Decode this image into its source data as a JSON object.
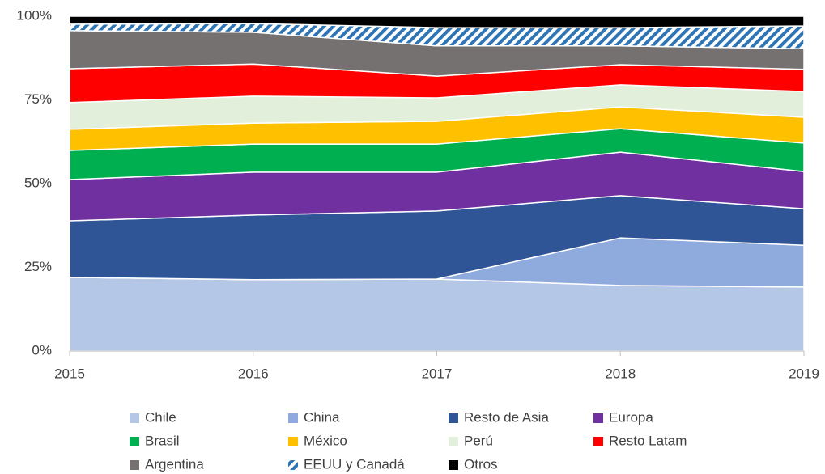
{
  "chart_data": {
    "type": "stacked-area",
    "x": [
      2015,
      2016,
      2017,
      2018,
      2019
    ],
    "xlim": [
      2015,
      2019
    ],
    "xticks": [
      2015,
      2016,
      2017,
      2018,
      2019
    ],
    "ylim": [
      0,
      100
    ],
    "yticks": [
      {
        "value": 0,
        "label": "0%"
      },
      {
        "value": 25,
        "label": "25%"
      },
      {
        "value": 50,
        "label": "50%"
      },
      {
        "value": 75,
        "label": "75%"
      },
      {
        "value": 100,
        "label": "100%"
      }
    ],
    "grid": false,
    "legend": "bottom",
    "series": [
      {
        "name": "Chile",
        "color": "#b4c7e7",
        "values": [
          22.0,
          21.3,
          21.5,
          19.6,
          19.1
        ]
      },
      {
        "name": "China",
        "color": "#8faadc",
        "values": [
          0,
          0,
          0,
          14.2,
          12.5
        ]
      },
      {
        "name": "Resto de Asia",
        "color": "#2f5597",
        "values": [
          16.9,
          19.3,
          20.3,
          12.6,
          10.9
        ]
      },
      {
        "name": "Europa",
        "color": "#7030a0",
        "values": [
          12.3,
          12.8,
          11.6,
          13.0,
          11.1
        ]
      },
      {
        "name": "Brasil",
        "color": "#00b050",
        "values": [
          8.7,
          8.4,
          8.4,
          7.0,
          8.5
        ]
      },
      {
        "name": "México",
        "color": "#ffc000",
        "values": [
          6.3,
          6.3,
          6.8,
          6.5,
          7.7
        ]
      },
      {
        "name": "Perú",
        "color": "#e2efda",
        "values": [
          8.0,
          8.0,
          7.0,
          6.6,
          7.7
        ]
      },
      {
        "name": "Resto Latam",
        "color": "#ff0000",
        "values": [
          10.1,
          9.6,
          6.5,
          6.0,
          6.6
        ]
      },
      {
        "name": "Argentina",
        "color": "#767171",
        "values": [
          11.4,
          9.5,
          9.0,
          5.6,
          6.2
        ]
      },
      {
        "name": "EEUU y Canadá",
        "color": "#2e75b6",
        "pattern": "diagonal-stripes",
        "values": [
          1.9,
          2.6,
          5.5,
          5.5,
          6.8
        ]
      },
      {
        "name": "Otros",
        "color": "#000000",
        "values": [
          2.4,
          2.2,
          3.4,
          3.4,
          2.9
        ]
      }
    ]
  }
}
